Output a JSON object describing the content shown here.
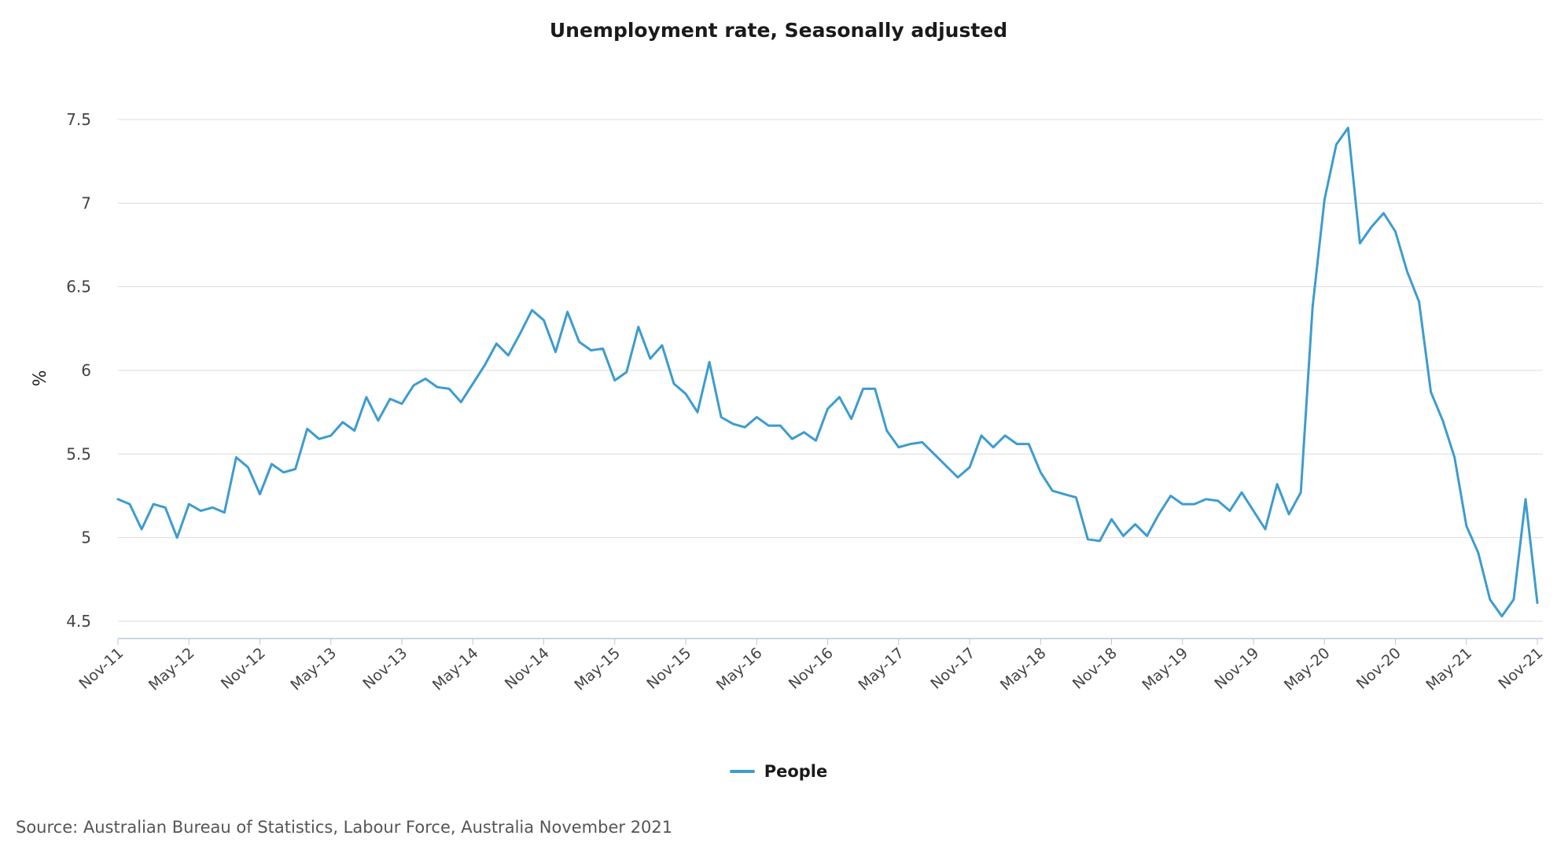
{
  "chart_data": {
    "type": "line",
    "title": "Unemployment rate, Seasonally adjusted",
    "ylabel": "%",
    "xlabel": "",
    "ylim": [
      4.5,
      7.5
    ],
    "yticks": [
      "4.5",
      "5",
      "5.5",
      "6",
      "6.5",
      "7",
      "7.5"
    ],
    "x_start": "Nov-11",
    "x_tick_labels": [
      "Nov-11",
      "May-12",
      "Nov-12",
      "May-13",
      "Nov-13",
      "May-14",
      "Nov-14",
      "May-15",
      "Nov-15",
      "May-16",
      "Nov-16",
      "May-17",
      "Nov-17",
      "May-18",
      "Nov-18",
      "May-19",
      "Nov-19",
      "May-20",
      "Nov-20",
      "May-21",
      "Nov-21"
    ],
    "grid": "horizontal",
    "legend_position": "bottom-center",
    "series": [
      {
        "name": "People",
        "color": "#3d9ccf",
        "values": [
          5.23,
          5.2,
          5.05,
          5.2,
          5.18,
          5.0,
          5.2,
          5.16,
          5.18,
          5.15,
          5.48,
          5.42,
          5.26,
          5.44,
          5.39,
          5.41,
          5.65,
          5.59,
          5.61,
          5.69,
          5.64,
          5.84,
          5.7,
          5.83,
          5.8,
          5.91,
          5.95,
          5.9,
          5.89,
          5.81,
          5.92,
          6.03,
          6.16,
          6.09,
          6.22,
          6.36,
          6.3,
          6.11,
          6.35,
          6.17,
          6.12,
          6.13,
          5.94,
          5.99,
          6.26,
          6.07,
          6.15,
          5.92,
          5.86,
          5.75,
          6.05,
          5.72,
          5.68,
          5.66,
          5.72,
          5.67,
          5.67,
          5.59,
          5.63,
          5.58,
          5.77,
          5.84,
          5.71,
          5.89,
          5.89,
          5.64,
          5.54,
          5.56,
          5.57,
          5.5,
          5.43,
          5.36,
          5.42,
          5.61,
          5.54,
          5.61,
          5.56,
          5.56,
          5.39,
          5.28,
          5.26,
          5.24,
          4.99,
          4.98,
          5.11,
          5.01,
          5.08,
          5.01,
          5.14,
          5.25,
          5.2,
          5.2,
          5.23,
          5.22,
          5.16,
          5.27,
          5.16,
          5.05,
          5.32,
          5.14,
          5.27,
          6.38,
          7.02,
          7.35,
          7.45,
          6.76,
          6.86,
          6.94,
          6.83,
          6.59,
          6.41,
          5.87,
          5.7,
          5.48,
          5.07,
          4.91,
          4.63,
          4.53,
          4.63,
          5.23,
          4.61
        ]
      }
    ]
  },
  "legend": {
    "items": [
      {
        "label": "People",
        "color": "#3d9ccf"
      }
    ]
  },
  "source": "Source: Australian Bureau of Statistics, Labour Force, Australia November 2021"
}
